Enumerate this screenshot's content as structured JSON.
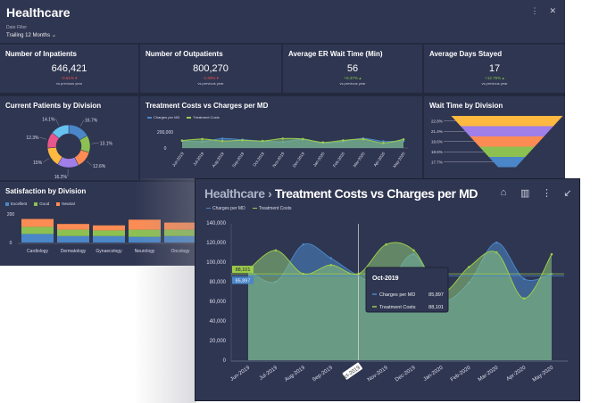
{
  "dashboard": {
    "title": "Healthcare",
    "filter_label": "Date Filter",
    "filter_value": "Trailing 12 Months",
    "more_icon": "more-vertical-icon",
    "close_icon": "close-icon"
  },
  "kpis": [
    {
      "title": "Number of Inpatients",
      "value": "646,421",
      "delta": "-0.61%",
      "trend": "down",
      "sub": "vs previous year"
    },
    {
      "title": "Number of Outpatients",
      "value": "800,270",
      "delta": "-1.93%",
      "trend": "down",
      "sub": "vs previous year"
    },
    {
      "title": "Average ER Wait Time (Min)",
      "value": "56",
      "delta": "+6.37%",
      "trend": "up",
      "sub": "vs previous year"
    },
    {
      "title": "Average Days Stayed",
      "value": "17",
      "delta": "+12.75%",
      "trend": "up",
      "sub": "vs previous year"
    }
  ],
  "colors": {
    "blue": "#4a86c8",
    "green": "#9ccc4a",
    "bg": "#2f3651",
    "negative": "#ef5350",
    "positive": "#8bc34a"
  },
  "chart_data": [
    {
      "type": "pie",
      "title": "Current Patients by Division",
      "values": [
        16.7,
        13.1,
        12.6,
        16.2,
        15,
        12.3,
        14.1
      ],
      "labels": [
        "16.7%",
        "13.1%",
        "12.6%",
        "16.2%",
        "15%",
        "12.3%",
        "14.1%"
      ],
      "colors": [
        "#4a86c8",
        "#8cc152",
        "#fd8c54",
        "#a07fe8",
        "#fdb940",
        "#e8578c",
        "#66c3f0"
      ],
      "donut": true
    },
    {
      "type": "area",
      "title": "Treatment Costs vs Charges per MD",
      "categories": [
        "Jun-2019",
        "Jul-2019",
        "Aug-2019",
        "Sep-2019",
        "Oct-2019",
        "Nov-2019",
        "Dec-2019",
        "Jan-2020",
        "Feb-2020",
        "Mar-2020",
        "Apr-2020",
        "May-2020"
      ],
      "series": [
        {
          "name": "Charges per MD",
          "values": [
            92000,
            80000,
            118000,
            104000,
            85897,
            76000,
            108000,
            62000,
            79000,
            120000,
            83000,
            88000
          ]
        },
        {
          "name": "Treatment Costs",
          "values": [
            92000,
            112000,
            88000,
            97000,
            88101,
            118000,
            112000,
            70000,
            95000,
            110000,
            63000,
            108000
          ]
        }
      ],
      "yticks": [
        "0",
        "200,000"
      ],
      "ylim": [
        0,
        200000
      ],
      "legend": "top-left"
    },
    {
      "type": "funnel",
      "title": "Wait Time by Division",
      "labels": [
        "22.8%",
        "21.4%",
        "19.6%",
        "18.5%",
        "17.7%"
      ],
      "values": [
        22.8,
        21.4,
        19.6,
        18.5,
        17.7
      ],
      "colors": [
        "#fdb940",
        "#a07fe8",
        "#fd8c54",
        "#8cc152",
        "#4a86c8"
      ]
    },
    {
      "type": "bar",
      "stacked": true,
      "title": "Satisfaction by Division",
      "categories": [
        "Cardiology",
        "Dermatology",
        "Gynaecology",
        "Neurology",
        "Oncology"
      ],
      "series": [
        {
          "name": "Excellent",
          "values": [
            60,
            45,
            45,
            40,
            45
          ]
        },
        {
          "name": "Good",
          "values": [
            50,
            45,
            40,
            50,
            45
          ]
        },
        {
          "name": "Neutral",
          "values": [
            55,
            40,
            35,
            70,
            50
          ]
        }
      ],
      "colors": [
        "#4a86c8",
        "#8cc152",
        "#fd8c54"
      ],
      "yticks": [
        "0",
        "200"
      ],
      "ylim": [
        0,
        200
      ],
      "legend": "top-left"
    },
    {
      "type": "area",
      "title": "Treatment Costs vs Charges per MD",
      "expanded": true,
      "yticks": [
        "0",
        "20,000",
        "40,000",
        "60,000",
        "80,000",
        "100,000",
        "120,000",
        "140,000"
      ],
      "ylim": [
        0,
        140000
      ],
      "legend": "top-left",
      "crosshair": {
        "category": "Oct-2019",
        "charges_label": "85,897",
        "costs_label": "88,101"
      }
    }
  ],
  "detail": {
    "breadcrumb": "Healthcare",
    "title": "Treatment Costs vs Charges per MD",
    "tooltip": {
      "title": "Oct-2019",
      "rows": [
        {
          "name": "Charges per MD",
          "value": "85,897"
        },
        {
          "name": "Treatment Costs",
          "value": "88,101"
        }
      ]
    },
    "icons": [
      "shape-icon",
      "bar-chart-icon",
      "more-vertical-icon",
      "collapse-icon"
    ]
  }
}
